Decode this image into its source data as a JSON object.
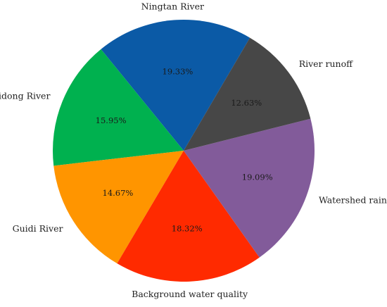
{
  "chart_data": {
    "type": "pie",
    "title": "",
    "start_angle_deg": 59.6,
    "direction": "counterclockwise",
    "slices": [
      {
        "label": "Ningtan River",
        "value": 19.33,
        "pct_text": "19.33%",
        "color": "#0b5aa6"
      },
      {
        "label": "Shidong River",
        "value": 15.95,
        "pct_text": "15.95%",
        "color": "#00b14f"
      },
      {
        "label": "Guidi River",
        "value": 14.67,
        "pct_text": "14.67%",
        "color": "#ff9500"
      },
      {
        "label": "Background water quality",
        "value": 18.32,
        "pct_text": "18.32%",
        "color": "#ff2a00"
      },
      {
        "label": "Watershed rainfall",
        "value": 19.09,
        "pct_text": "19.09%",
        "color": "#825b9a"
      },
      {
        "label": "River runoff",
        "value": 12.63,
        "pct_text": "12.63%",
        "color": "#474747"
      }
    ]
  }
}
